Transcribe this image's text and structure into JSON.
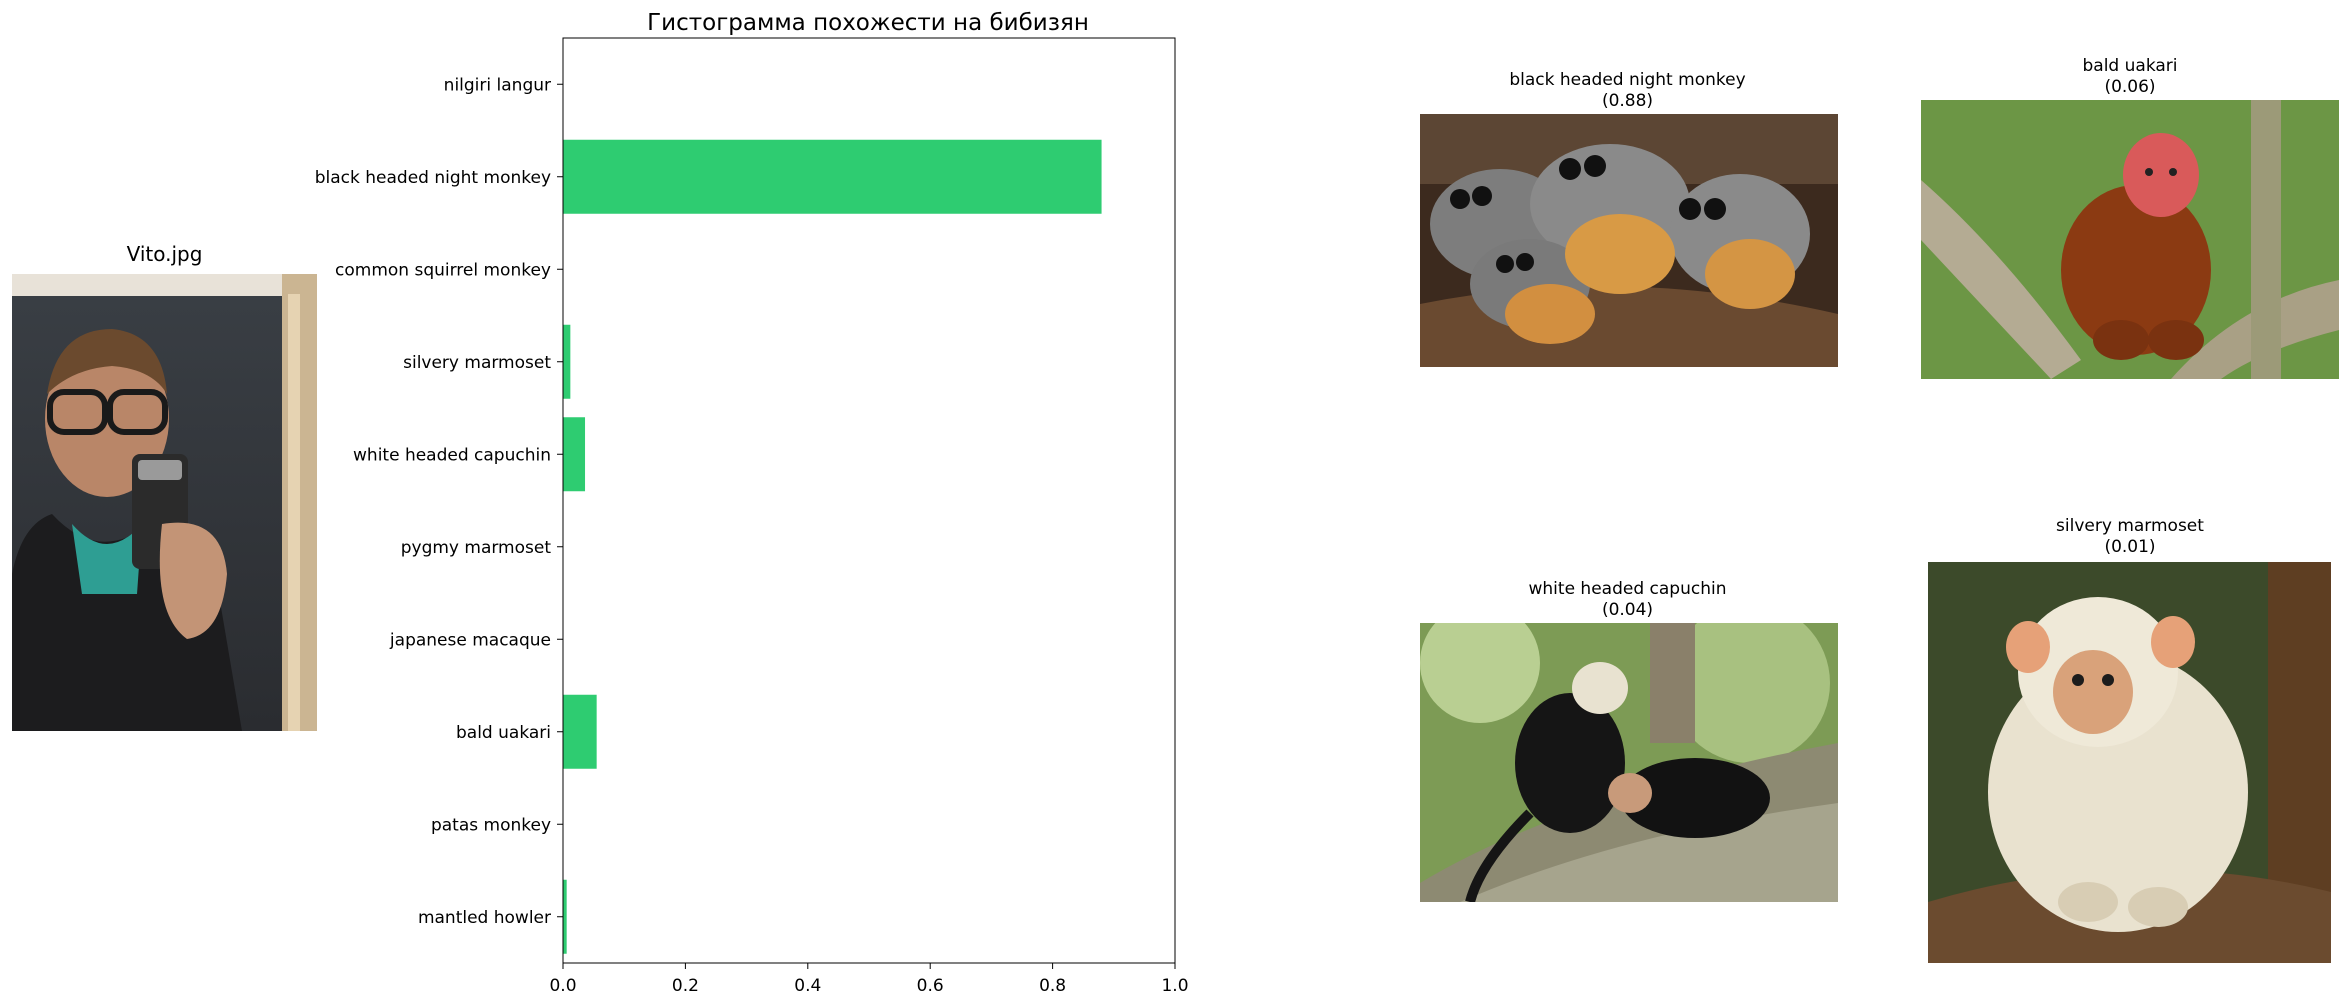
{
  "source_panel": {
    "title": "Vito.jpg",
    "image_kind": "selfie-person-with-phone"
  },
  "colors": {
    "bar": "#2ecc71",
    "axis": "#000000",
    "background": "#ffffff"
  },
  "chart_data": {
    "type": "bar",
    "orientation": "horizontal",
    "title": "Гистограмма похожести на бибизян",
    "xlabel": "",
    "ylabel": "",
    "xlim": [
      0,
      1.0
    ],
    "x_ticks": [
      "0.0",
      "0.2",
      "0.4",
      "0.6",
      "0.8",
      "1.0"
    ],
    "grid": false,
    "categories": [
      "nilgiri langur",
      "black headed night monkey",
      "common squirrel monkey",
      "silvery marmoset",
      "white headed capuchin",
      "pygmy marmoset",
      "japanese macaque",
      "bald uakari",
      "patas monkey",
      "mantled howler"
    ],
    "values": [
      0.0,
      0.88,
      0.0,
      0.012,
      0.036,
      0.0,
      0.0,
      0.055,
      0.0,
      0.006
    ]
  },
  "matches": [
    {
      "name": "black headed night monkey",
      "score": "(0.88)",
      "image_kind": "night-monkeys-on-branch"
    },
    {
      "name": "bald uakari",
      "score": "(0.06)",
      "image_kind": "red-faced-uakari-in-tree"
    },
    {
      "name": "white headed capuchin",
      "score": "(0.04)",
      "image_kind": "capuchins-on-tree"
    },
    {
      "name": "silvery marmoset",
      "score": "(0.01)",
      "image_kind": "silvery-marmoset-portrait"
    }
  ]
}
